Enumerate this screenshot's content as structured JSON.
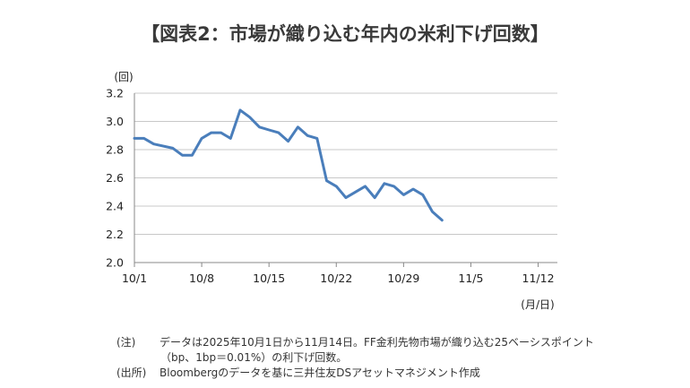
{
  "title": "【図表2：市場が織り込む年内の米利下げ回数】",
  "chart_data": {
    "type": "line",
    "title": "【図表2：市場が織り込む年内の米利下げ回数】",
    "y_unit_label": "(回)",
    "x_unit_label": "(月/日)",
    "ylim": [
      2.0,
      3.2
    ],
    "y_ticks": [
      "2.0",
      "2.2",
      "2.4",
      "2.6",
      "2.8",
      "3.0",
      "3.2"
    ],
    "grid": true,
    "legend": "none",
    "line_color": "#4a7ebb",
    "x_tick_labels": [
      "10/1",
      "10/8",
      "10/15",
      "10/22",
      "10/29",
      "11/5",
      "11/12"
    ],
    "x_tick_day_index": [
      0,
      7,
      14,
      21,
      28,
      35,
      42
    ],
    "x_range_days": [
      0,
      44
    ],
    "series": [
      {
        "values": [
          [
            0,
            2.88
          ],
          [
            1,
            2.88
          ],
          [
            2,
            2.84
          ],
          [
            4,
            2.81
          ],
          [
            5,
            2.76
          ],
          [
            6,
            2.76
          ],
          [
            7,
            2.88
          ],
          [
            8,
            2.92
          ],
          [
            9,
            2.92
          ],
          [
            10,
            2.88
          ],
          [
            11,
            3.08
          ],
          [
            12,
            3.03
          ],
          [
            13,
            2.96
          ],
          [
            14,
            2.94
          ],
          [
            15,
            2.92
          ],
          [
            16,
            2.86
          ],
          [
            17,
            2.96
          ],
          [
            18,
            2.9
          ],
          [
            19,
            2.88
          ],
          [
            20,
            2.58
          ],
          [
            21,
            2.54
          ],
          [
            22,
            2.46
          ],
          [
            24,
            2.54
          ],
          [
            25,
            2.46
          ],
          [
            26,
            2.56
          ],
          [
            27,
            2.54
          ],
          [
            28,
            2.48
          ],
          [
            29,
            2.52
          ],
          [
            30,
            2.48
          ],
          [
            31,
            2.36
          ],
          [
            32,
            2.3
          ]
        ]
      }
    ]
  },
  "notes": [
    {
      "label": "(注)",
      "lines": [
        "データは2025年10月1日から11月14日。FF金利先物市場が織り込む25ベーシスポイント",
        "（bp、1bp＝0.01%）の利下げ回数。"
      ]
    },
    {
      "label": "(出所)",
      "lines": [
        "Bloombergのデータを基に三井住友DSアセットマネジメント作成"
      ]
    }
  ]
}
